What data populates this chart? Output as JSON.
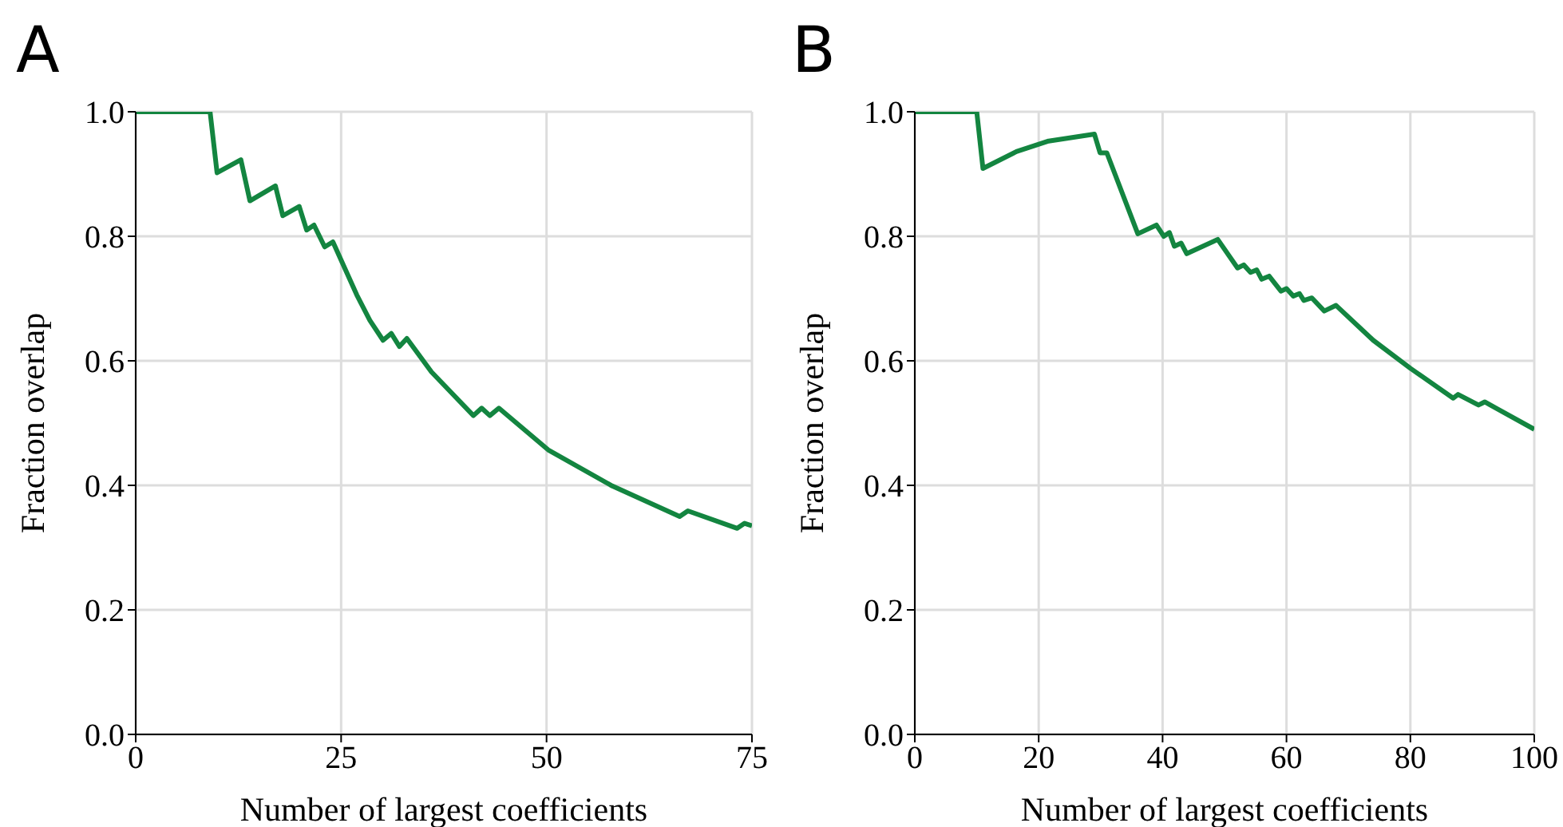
{
  "chart_data": [
    {
      "type": "line",
      "title": "A",
      "xlabel": "Number of largest coefficients",
      "ylabel": "Fraction overlap",
      "x": [
        0,
        9.05,
        9.9,
        12.8,
        13.9,
        17.0,
        17.9,
        19.9,
        20.8,
        21.7,
        23.0,
        24.0,
        26.9,
        28.5,
        30.1,
        31.1,
        32.1,
        33.0,
        36.0,
        41.1,
        42.1,
        43.1,
        44.2,
        50.2,
        58.0,
        66.2,
        67.2,
        73.2,
        74.1,
        75
      ],
      "series": [
        {
          "color": "#138540",
          "values": [
            1.0,
            1.0,
            0.902,
            0.923,
            0.857,
            0.881,
            0.833,
            0.848,
            0.81,
            0.818,
            0.783,
            0.791,
            0.706,
            0.665,
            0.633,
            0.644,
            0.623,
            0.636,
            0.582,
            0.512,
            0.524,
            0.512,
            0.524,
            0.457,
            0.399,
            0.35,
            0.359,
            0.331,
            0.339,
            0.335
          ]
        }
      ],
      "xlim": [
        0,
        75
      ],
      "ylim": [
        0,
        1.0
      ],
      "xticks": [
        0,
        25,
        50,
        75
      ],
      "yticks": [
        {
          "value": 0,
          "label": "0.0"
        },
        {
          "value": 0.2,
          "label": "0.2"
        },
        {
          "value": 0.4,
          "label": "0.4"
        },
        {
          "value": 0.6,
          "label": "0.6"
        },
        {
          "value": 0.8,
          "label": "0.8"
        },
        {
          "value": 1.0,
          "label": "1.0"
        }
      ],
      "grid": true
    },
    {
      "type": "line",
      "title": "B",
      "xlabel": "Number of largest coefficients",
      "ylabel": "Fraction overlap",
      "x": [
        0,
        10.0,
        11.0,
        16.4,
        21.6,
        29.0,
        29.9,
        31.0,
        36.0,
        39.0,
        40.2,
        41.1,
        41.9,
        43.0,
        43.9,
        48.9,
        52.1,
        53.1,
        54.2,
        55.2,
        56.0,
        57.2,
        59.1,
        60.0,
        61.1,
        62.1,
        62.8,
        64.1,
        66.1,
        68.0,
        74.0,
        80.0,
        86.9,
        87.7,
        91.0,
        92.0,
        100
      ],
      "series": [
        {
          "color": "#138540",
          "values": [
            1.0,
            1.0,
            0.909,
            0.936,
            0.953,
            0.964,
            0.934,
            0.934,
            0.804,
            0.818,
            0.8,
            0.806,
            0.784,
            0.789,
            0.772,
            0.795,
            0.749,
            0.754,
            0.742,
            0.746,
            0.731,
            0.736,
            0.712,
            0.716,
            0.704,
            0.708,
            0.697,
            0.701,
            0.68,
            0.689,
            0.633,
            0.588,
            0.54,
            0.546,
            0.529,
            0.534,
            0.49
          ]
        }
      ],
      "xlim": [
        0,
        100
      ],
      "ylim": [
        0,
        1.0
      ],
      "xticks": [
        0,
        20,
        40,
        60,
        80,
        100
      ],
      "yticks": [
        {
          "value": 0,
          "label": "0.0"
        },
        {
          "value": 0.2,
          "label": "0.2"
        },
        {
          "value": 0.4,
          "label": "0.4"
        },
        {
          "value": 0.6,
          "label": "0.6"
        },
        {
          "value": 0.8,
          "label": "0.8"
        },
        {
          "value": 1.0,
          "label": "1.0"
        }
      ],
      "grid": true
    }
  ]
}
